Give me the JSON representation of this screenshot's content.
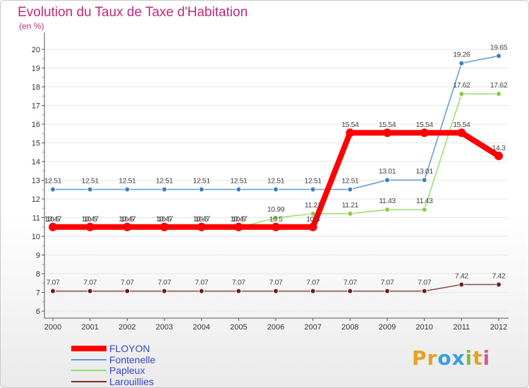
{
  "chart_data": {
    "type": "line",
    "title": "Evolution du Taux de Taxe d'Habitation",
    "subtitle": "(en %)",
    "xlabel": "",
    "ylabel": "",
    "x": [
      "2000",
      "2001",
      "2002",
      "2003",
      "2004",
      "2005",
      "2006",
      "2007",
      "2008",
      "2009",
      "2010",
      "2011",
      "2012"
    ],
    "ylim": [
      6,
      20
    ],
    "yticks": [
      "6",
      "7",
      "8",
      "9",
      "10",
      "11",
      "12",
      "13",
      "14",
      "15",
      "16",
      "17",
      "18",
      "19",
      "20"
    ],
    "legend_position": "bottom-left",
    "series": [
      {
        "name": "FLOYON",
        "color": "#ff0000",
        "values": [
          10.5,
          10.5,
          10.5,
          10.5,
          10.5,
          10.5,
          10.5,
          10.5,
          15.54,
          15.54,
          15.54,
          15.54,
          14.3
        ],
        "labels": [
          "10.5",
          "10.5",
          "10.5",
          "10.5",
          "10.5",
          "10.5",
          "10.5",
          "10.5",
          "15.54",
          "15.54",
          "15.54",
          "15.54",
          "14.3"
        ]
      },
      {
        "name": "Fontenelle",
        "color": "#5b9bd5",
        "values": [
          12.51,
          12.51,
          12.51,
          12.51,
          12.51,
          12.51,
          12.51,
          12.51,
          12.51,
          13.01,
          13.01,
          19.26,
          19.65
        ],
        "labels": [
          "12.51",
          "12.51",
          "12.51",
          "12.51",
          "12.51",
          "12.51",
          "12.51",
          "12.51",
          "12.51",
          "13.01",
          "13.01",
          "19.26",
          "19.65"
        ]
      },
      {
        "name": "Papleux",
        "color": "#99dd66",
        "values": [
          10.47,
          10.47,
          10.47,
          10.47,
          10.47,
          10.47,
          10.99,
          11.21,
          11.21,
          11.43,
          11.43,
          17.62,
          17.62
        ],
        "labels": [
          "10.47",
          "10.47",
          "10.47",
          "10.47",
          "10.47",
          "10.47",
          "10.99",
          "11.21",
          "11.21",
          "11.43",
          "11.43",
          "17.62",
          "17.62"
        ]
      },
      {
        "name": "Larouillies",
        "color": "#7a2a2a",
        "values": [
          7.07,
          7.07,
          7.07,
          7.07,
          7.07,
          7.07,
          7.07,
          7.07,
          7.07,
          7.07,
          7.07,
          7.42,
          7.42
        ],
        "labels": [
          "7.07",
          "7.07",
          "7.07",
          "7.07",
          "7.07",
          "7.07",
          "7.07",
          "7.07",
          "7.07",
          "7.07",
          "7.07",
          "7.42",
          "7.42"
        ]
      }
    ]
  },
  "logo": {
    "letters": [
      "P",
      "r",
      "o",
      "x",
      "i",
      "t",
      "i"
    ],
    "colors": [
      "#e8a020",
      "#e8a020",
      "#3aa0dc",
      "#3aa0dc",
      "#7fbf3a",
      "#e8a020",
      "#d65aa0"
    ]
  }
}
